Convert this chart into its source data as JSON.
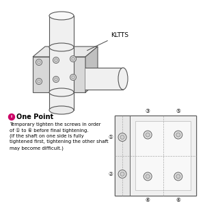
{
  "bg_color": "#ffffff",
  "label_KLTTS": "KLTTS",
  "one_point_title": "One Point",
  "body_text_lines": [
    "Temporary tighten the screws in order",
    "of ① to ⑥ before final tightening.",
    "(If the shaft on one side is fully",
    "tightened first, tightening the other shaft",
    "may become difficult.)"
  ],
  "screw_numbers": [
    "①",
    "②",
    "③",
    "④",
    "⑤",
    "⑥"
  ],
  "iso_block_color_front": "#d8d8d8",
  "iso_block_color_top": "#e8e8e8",
  "iso_block_color_right": "#c0c0c0",
  "cyl_color": "#f0f0f0",
  "cyl_edge": "#555555",
  "block_edge": "#555555",
  "screw_outer_color": "#666666",
  "screw_inner_color": "#888888"
}
